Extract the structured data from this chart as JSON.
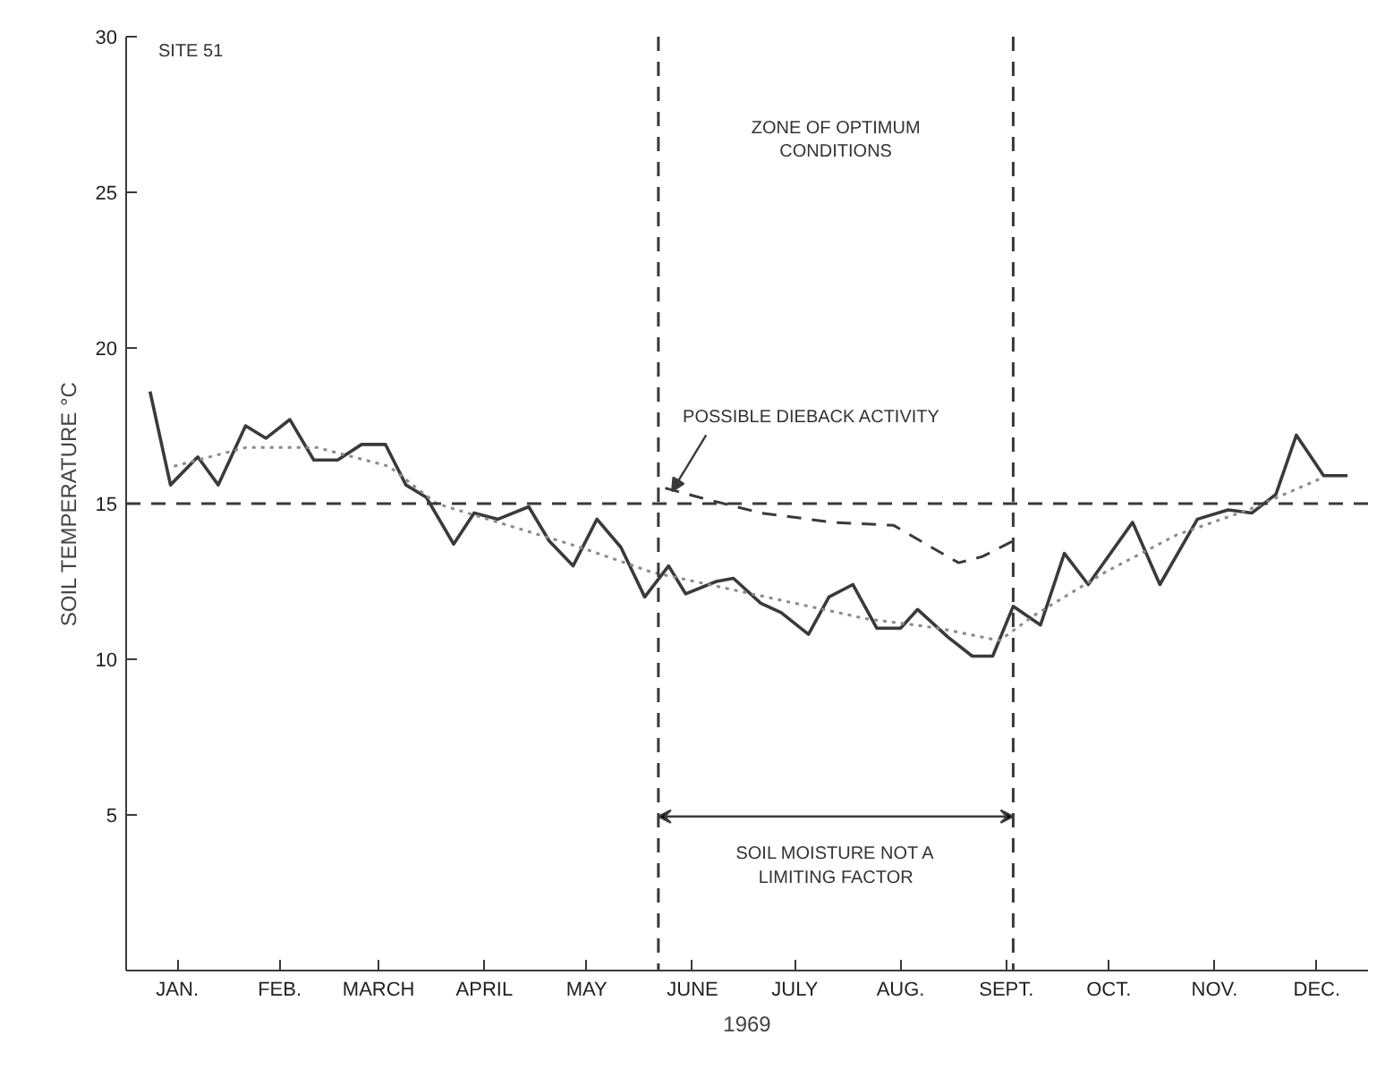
{
  "chart_data": {
    "type": "line",
    "xlabel": "1969",
    "ylabel": "SOIL TEMPERATURE °C",
    "xlim": [
      "1969-01-01",
      "1969-12-31"
    ],
    "ylim": [
      0,
      30
    ],
    "xticks": [
      {
        "value": "1969-01-16",
        "label": "JAN."
      },
      {
        "value": "1969-02-15",
        "label": "FEB."
      },
      {
        "value": "1969-03-16",
        "label": "MARCH"
      },
      {
        "value": "1969-04-16",
        "label": "APRIL"
      },
      {
        "value": "1969-05-16",
        "label": "MAY"
      },
      {
        "value": "1969-06-16",
        "label": "JUNE"
      },
      {
        "value": "1969-07-16",
        "label": "JULY"
      },
      {
        "value": "1969-08-16",
        "label": "AUG."
      },
      {
        "value": "1969-09-16",
        "label": "SEPT."
      },
      {
        "value": "1969-10-16",
        "label": "OCT."
      },
      {
        "value": "1969-11-16",
        "label": "NOV."
      },
      {
        "value": "1969-12-16",
        "label": "DEC."
      }
    ],
    "yticks": [
      5,
      10,
      15,
      20,
      25,
      30
    ],
    "grid": false,
    "series": [
      {
        "color": "#3a3a3a",
        "line_style": "solid",
        "x": [
          "1969-01-08",
          "1969-01-14",
          "1969-01-22",
          "1969-01-28",
          "1969-02-05",
          "1969-02-11",
          "1969-02-18",
          "1969-02-25",
          "1969-03-04",
          "1969-03-11",
          "1969-03-18",
          "1969-03-24",
          "1969-03-30",
          "1969-04-07",
          "1969-04-13",
          "1969-04-20",
          "1969-04-29",
          "1969-05-05",
          "1969-05-12",
          "1969-05-19",
          "1969-05-26",
          "1969-06-02",
          "1969-06-09",
          "1969-06-14",
          "1969-06-23",
          "1969-06-28",
          "1969-07-06",
          "1969-07-12",
          "1969-07-20",
          "1969-07-26",
          "1969-08-02",
          "1969-08-09",
          "1969-08-16",
          "1969-08-21",
          "1969-08-30",
          "1969-09-06",
          "1969-09-12",
          "1969-09-18",
          "1969-09-26",
          "1969-10-03",
          "1969-10-10",
          "1969-10-23",
          "1969-10-31",
          "1969-11-11",
          "1969-11-20",
          "1969-11-27",
          "1969-12-04",
          "1969-12-10",
          "1969-12-18",
          "1969-12-25"
        ],
        "values": [
          18.6,
          15.6,
          16.5,
          15.6,
          17.5,
          17.1,
          17.7,
          16.4,
          16.4,
          16.9,
          16.9,
          15.6,
          15.2,
          13.7,
          14.7,
          14.5,
          14.9,
          13.8,
          13.0,
          14.5,
          13.6,
          12.0,
          13.0,
          12.1,
          12.5,
          12.6,
          11.8,
          11.5,
          10.8,
          12.0,
          12.4,
          11.0,
          11.0,
          11.6,
          10.7,
          10.1,
          10.1,
          11.7,
          11.1,
          13.4,
          12.4,
          14.4,
          12.4,
          14.5,
          14.8,
          14.7,
          15.3,
          17.2,
          15.9,
          15.9
        ]
      },
      {
        "color": "#8a8a8a",
        "line_style": "dotted",
        "x": [
          "1969-01-15",
          "1969-02-05",
          "1969-02-26",
          "1969-03-19",
          "1969-04-02",
          "1969-04-23",
          "1969-05-14",
          "1969-06-04",
          "1969-06-25",
          "1969-07-16",
          "1969-08-06",
          "1969-08-27",
          "1969-09-14",
          "1969-09-24",
          "1969-10-15",
          "1969-11-05",
          "1969-11-26",
          "1969-12-17"
        ],
        "values": [
          16.2,
          16.8,
          16.8,
          16.2,
          15.0,
          14.3,
          13.6,
          12.8,
          12.3,
          11.8,
          11.3,
          11.0,
          10.6,
          11.4,
          12.8,
          14.0,
          14.8,
          15.8
        ]
      },
      {
        "color": "#3a3a3a",
        "line_style": "dashed",
        "x": [
          "1969-06-08",
          "1969-06-18",
          "1969-07-06",
          "1969-07-27",
          "1969-08-14",
          "1969-08-25",
          "1969-09-02",
          "1969-09-09",
          "1969-09-18"
        ],
        "values": [
          15.5,
          15.2,
          14.7,
          14.4,
          14.3,
          13.6,
          13.1,
          13.3,
          13.8
        ]
      }
    ],
    "ref_lines": [
      {
        "axis": "y",
        "value": 15,
        "label": null,
        "line_style": "dashed",
        "color": "#3a3a3a"
      },
      {
        "axis": "x",
        "value": "1969-06-06",
        "label": null,
        "line_style": "dashed",
        "color": "#3a3a3a"
      },
      {
        "axis": "x",
        "value": "1969-09-18",
        "label": null,
        "line_style": "dashed",
        "color": "#3a3a3a"
      }
    ],
    "annotations": [
      "SITE 51",
      {
        "text": "POSSIBLE DIEBACK ACTIVITY",
        "x": "1969-06-10",
        "y": 15.4
      },
      "ZONE OF OPTIMUM\nCONDITIONS",
      "SOIL MOISTURE NOT A\nLIMITING FACTOR"
    ]
  }
}
